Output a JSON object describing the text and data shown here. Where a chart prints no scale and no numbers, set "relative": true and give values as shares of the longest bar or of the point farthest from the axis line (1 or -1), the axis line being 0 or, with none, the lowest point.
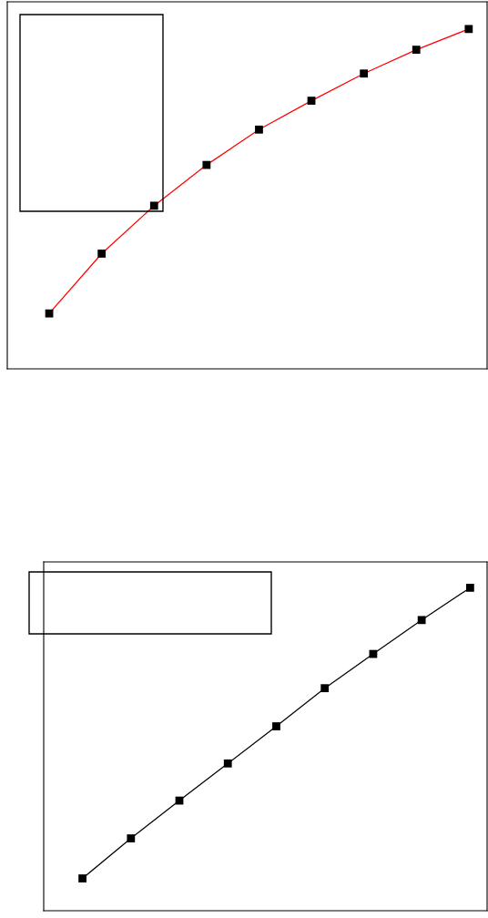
{
  "chart_data": [
    {
      "type": "line",
      "relative": true,
      "marker": "square",
      "categories": [
        null,
        null,
        null,
        null,
        null,
        null,
        null,
        null,
        null
      ],
      "series": [
        {
          "color": "#ff0000",
          "colors": [
            "#000000",
            "#000000",
            "#000000",
            "#000000",
            "#000000",
            "#000000",
            "#000000",
            "#000000",
            "#000000"
          ],
          "values": [
            0.163,
            0.339,
            0.48,
            0.6,
            0.704,
            0.789,
            0.869,
            0.939,
            1
          ]
        }
      ]
    },
    {
      "type": "line",
      "relative": true,
      "marker": "square",
      "categories": [
        null,
        null,
        null,
        null,
        null,
        null,
        null,
        null,
        null
      ],
      "series": [
        {
          "color": "#000000",
          "colors": [
            "#000000",
            "#000000",
            "#000000",
            "#000000",
            "#000000",
            "#000000",
            "#000000",
            "#000000",
            "#000000"
          ],
          "values": [
            0.1,
            0.224,
            0.341,
            0.456,
            0.571,
            0.689,
            0.795,
            0.9,
            1
          ]
        }
      ]
    }
  ]
}
